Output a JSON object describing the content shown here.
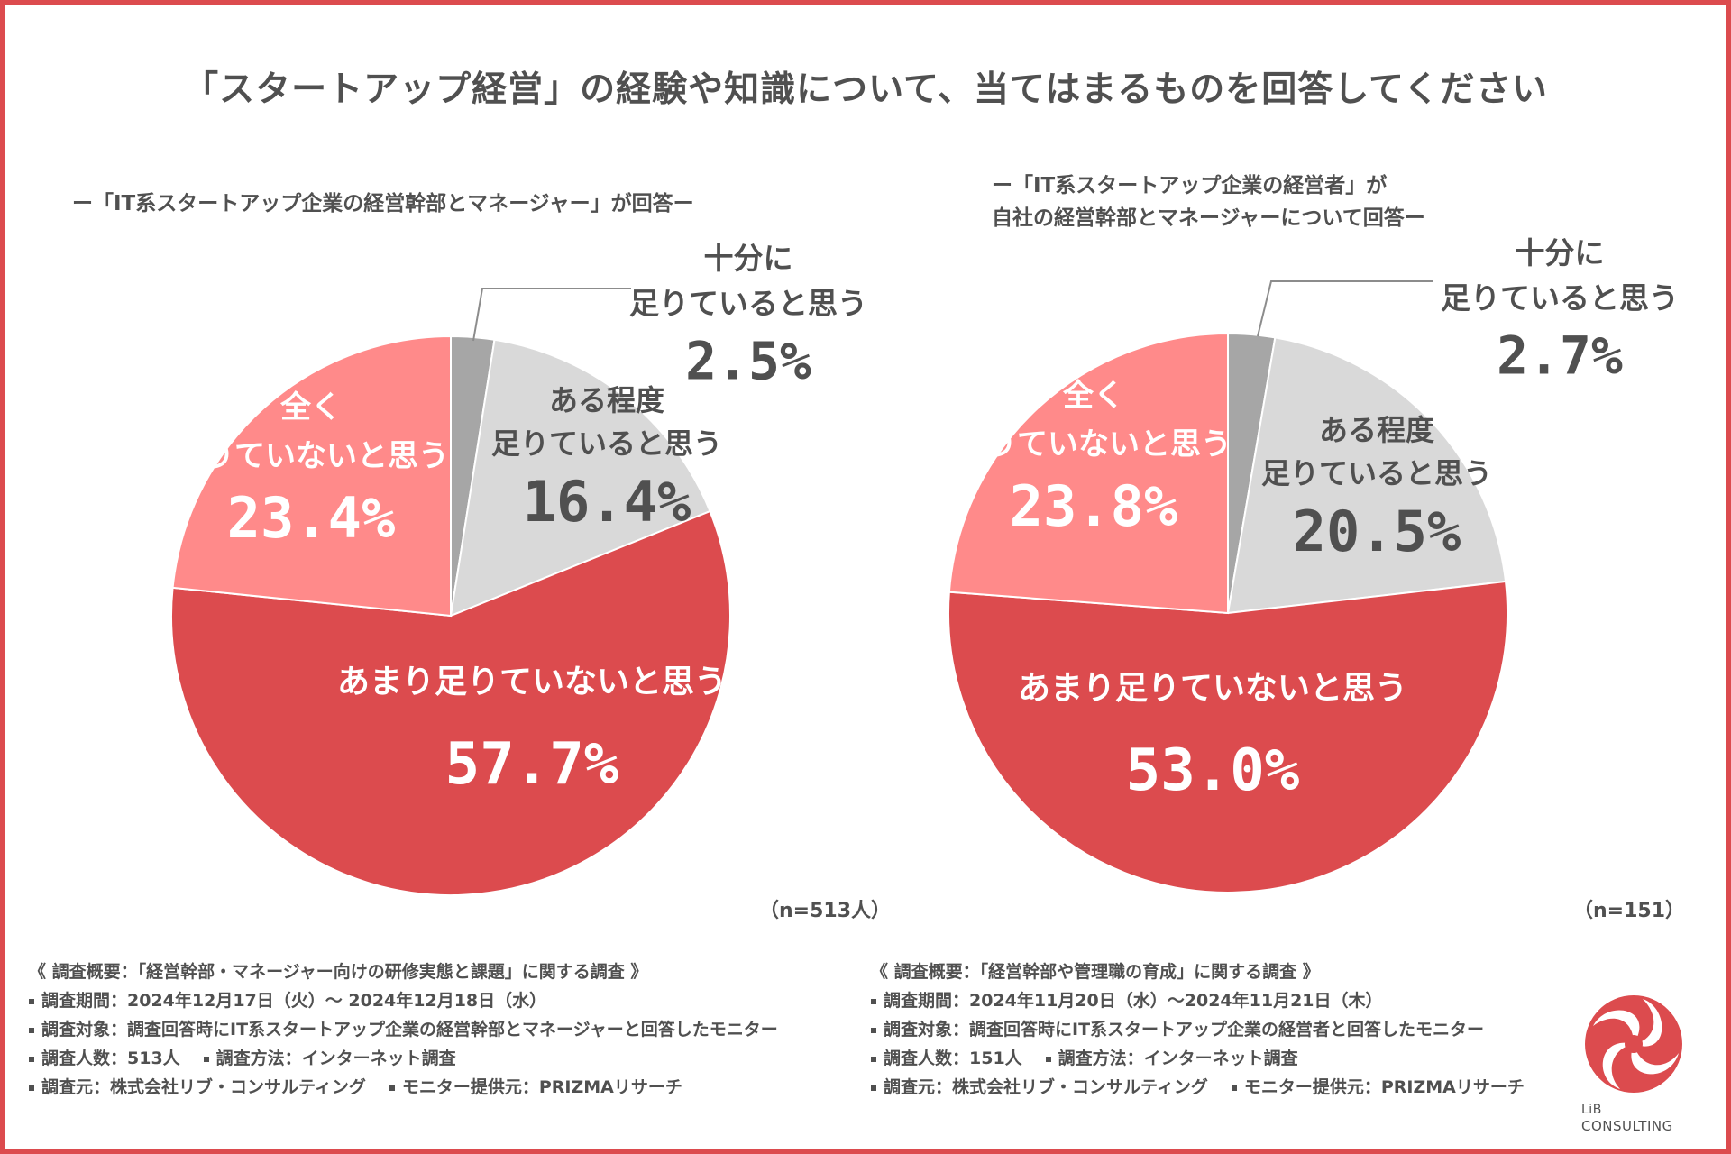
{
  "title": "「スタートアップ経営」の経験や知識について、当てはまるものを回答してください",
  "colors": {
    "frame": "#dc4b4e",
    "enough": "#a6a6a6",
    "somewhat": "#d9d9d9",
    "not_much": "#dc4b4e",
    "not_at_all": "#ff8a8a",
    "text": "#505050",
    "white": "#ffffff"
  },
  "chart_data": [
    {
      "type": "pie",
      "subtitle_lines": [
        "ー「IT系スタートアップ企業の経営幹部とマネージャー」が回答ー"
      ],
      "n": "（n=513人）",
      "slices": [
        {
          "key": "enough",
          "label_lines": [
            "十分に",
            "足りていると思う"
          ],
          "value": 2.5,
          "value_text": "2.5%"
        },
        {
          "key": "somewhat",
          "label_lines": [
            "ある程度",
            "足りていると思う"
          ],
          "value": 16.4,
          "value_text": "16.4%"
        },
        {
          "key": "not_much",
          "label_lines": [
            "あまり足りていないと思う"
          ],
          "value": 57.7,
          "value_text": "57.7%"
        },
        {
          "key": "not_at_all",
          "label_lines": [
            "全く",
            "足りていないと思う"
          ],
          "value": 23.4,
          "value_text": "23.4%"
        }
      ]
    },
    {
      "type": "pie",
      "subtitle_lines": [
        "ー「IT系スタートアップ企業の経営者」が",
        "自社の経営幹部とマネージャーについて回答ー"
      ],
      "n": "（n=151）",
      "slices": [
        {
          "key": "enough",
          "label_lines": [
            "十分に",
            "足りていると思う"
          ],
          "value": 2.7,
          "value_text": "2.7%"
        },
        {
          "key": "somewhat",
          "label_lines": [
            "ある程度",
            "足りていると思う"
          ],
          "value": 20.5,
          "value_text": "20.5%"
        },
        {
          "key": "not_much",
          "label_lines": [
            "あまり足りていないと思う"
          ],
          "value": 53.0,
          "value_text": "53.0%"
        },
        {
          "key": "not_at_all",
          "label_lines": [
            "全く",
            "足りていないと思う"
          ],
          "value": 23.8,
          "value_text": "23.8%"
        }
      ]
    }
  ],
  "survey_left": {
    "heading": "《 調査概要：「経営幹部・マネージャー向けの研修実態と課題」に関する調査 》",
    "period": "調査期間：2024年12月17日（火）～ 2024年12月18日（水）",
    "target": "調査対象：調査回答時にIT系スタートアップ企業の経営幹部とマネージャーと回答したモニター",
    "count": "調査人数：513人",
    "method": "調査方法：インターネット調査",
    "source": "調査元：株式会社リブ・コンサルティング",
    "provider": "モニター提供元：PRIZMAリサーチ"
  },
  "survey_right": {
    "heading": "《 調査概要：「経営幹部や管理職の育成」に関する調査 》",
    "period": "調査期間：2024年11月20日（水）～2024年11月21日（木）",
    "target": "調査対象：調査回答時にIT系スタートアップ企業の経営者と回答したモニター",
    "count": "調査人数：151人",
    "method": "調査方法：インターネット調査",
    "source": "調査元：株式会社リブ・コンサルティング",
    "provider": "モニター提供元：PRIZMAリサーチ"
  },
  "logo": {
    "line1": "LiB",
    "line2": "CONSULTING"
  }
}
